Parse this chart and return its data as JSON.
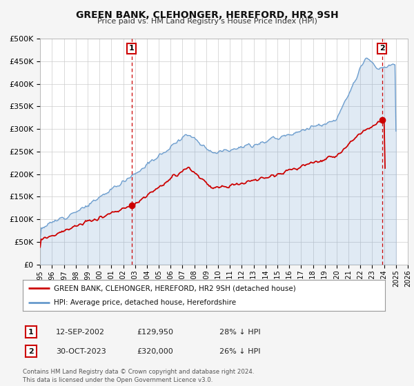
{
  "title": "GREEN BANK, CLEHONGER, HEREFORD, HR2 9SH",
  "subtitle": "Price paid vs. HM Land Registry's House Price Index (HPI)",
  "legend_line1": "GREEN BANK, CLEHONGER, HEREFORD, HR2 9SH (detached house)",
  "legend_line2": "HPI: Average price, detached house, Herefordshire",
  "annotation1_date": "12-SEP-2002",
  "annotation1_price": "£129,950",
  "annotation1_hpi": "28% ↓ HPI",
  "annotation2_date": "30-OCT-2023",
  "annotation2_price": "£320,000",
  "annotation2_hpi": "26% ↓ HPI",
  "vline1_year": 2002.71,
  "vline2_year": 2023.83,
  "sale1_x": 2002.71,
  "sale1_y": 129950,
  "sale2_x": 2023.83,
  "sale2_y": 320000,
  "red_color": "#cc0000",
  "blue_color": "#6699cc",
  "background_color": "#f5f5f5",
  "plot_bg_color": "#ffffff",
  "footer": "Contains HM Land Registry data © Crown copyright and database right 2024.\nThis data is licensed under the Open Government Licence v3.0.",
  "ylim": [
    0,
    500000
  ],
  "xlim_start": 1995,
  "xlim_end": 2026
}
